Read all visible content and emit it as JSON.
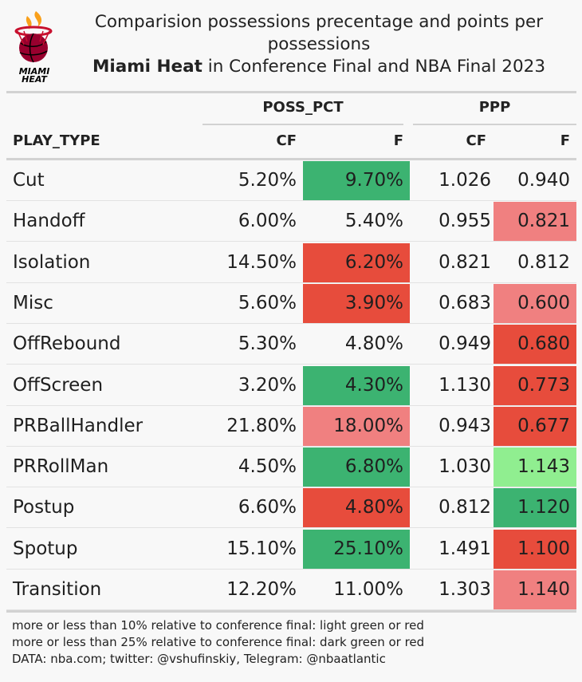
{
  "logo": {
    "text_line1": "MIAMI",
    "text_line2": "HEAT",
    "icon": "miami-heat-logo-icon"
  },
  "title": {
    "line1": "Comparision possessions precentage and points per possessions",
    "line2_bold": "Miami Heat",
    "line2_rest": " in Conference Final and NBA Final 2023"
  },
  "colors": {
    "dark_green": "#3cb371",
    "light_green": "#90ee90",
    "dark_red": "#e74c3c",
    "light_red": "#f08080",
    "none": "transparent"
  },
  "chart_data": {
    "type": "table",
    "column_groups": [
      "POSS_PCT",
      "PPP"
    ],
    "columns": [
      "PLAY_TYPE",
      "CF",
      "F",
      "CF",
      "F"
    ],
    "rows": [
      {
        "play_type": "Cut",
        "poss_cf": "5.20%",
        "poss_f": "9.70%",
        "poss_f_level": "dark_green",
        "ppp_cf": "1.026",
        "ppp_f": "0.940",
        "ppp_f_level": "none"
      },
      {
        "play_type": "Handoff",
        "poss_cf": "6.00%",
        "poss_f": "5.40%",
        "poss_f_level": "none",
        "ppp_cf": "0.955",
        "ppp_f": "0.821",
        "ppp_f_level": "light_red"
      },
      {
        "play_type": "Isolation",
        "poss_cf": "14.50%",
        "poss_f": "6.20%",
        "poss_f_level": "dark_red",
        "ppp_cf": "0.821",
        "ppp_f": "0.812",
        "ppp_f_level": "none"
      },
      {
        "play_type": "Misc",
        "poss_cf": "5.60%",
        "poss_f": "3.90%",
        "poss_f_level": "dark_red",
        "ppp_cf": "0.683",
        "ppp_f": "0.600",
        "ppp_f_level": "light_red"
      },
      {
        "play_type": "OffRebound",
        "poss_cf": "5.30%",
        "poss_f": "4.80%",
        "poss_f_level": "none",
        "ppp_cf": "0.949",
        "ppp_f": "0.680",
        "ppp_f_level": "dark_red"
      },
      {
        "play_type": "OffScreen",
        "poss_cf": "3.20%",
        "poss_f": "4.30%",
        "poss_f_level": "dark_green",
        "ppp_cf": "1.130",
        "ppp_f": "0.773",
        "ppp_f_level": "dark_red"
      },
      {
        "play_type": "PRBallHandler",
        "poss_cf": "21.80%",
        "poss_f": "18.00%",
        "poss_f_level": "light_red",
        "ppp_cf": "0.943",
        "ppp_f": "0.677",
        "ppp_f_level": "dark_red"
      },
      {
        "play_type": "PRRollMan",
        "poss_cf": "4.50%",
        "poss_f": "6.80%",
        "poss_f_level": "dark_green",
        "ppp_cf": "1.030",
        "ppp_f": "1.143",
        "ppp_f_level": "light_green"
      },
      {
        "play_type": "Postup",
        "poss_cf": "6.60%",
        "poss_f": "4.80%",
        "poss_f_level": "dark_red",
        "ppp_cf": "0.812",
        "ppp_f": "1.120",
        "ppp_f_level": "dark_green"
      },
      {
        "play_type": "Spotup",
        "poss_cf": "15.10%",
        "poss_f": "25.10%",
        "poss_f_level": "dark_green",
        "ppp_cf": "1.491",
        "ppp_f": "1.100",
        "ppp_f_level": "dark_red"
      },
      {
        "play_type": "Transition",
        "poss_cf": "12.20%",
        "poss_f": "11.00%",
        "poss_f_level": "none",
        "ppp_cf": "1.303",
        "ppp_f": "1.140",
        "ppp_f_level": "light_red"
      }
    ]
  },
  "notes": [
    "more or less than 10% relative to conference final: light green or red",
    "more or less than 25% relative to conference final: dark green or red",
    "DATA: nba.com; twitter: @vshufinskiy, Telegram: @nbaatlantic"
  ]
}
